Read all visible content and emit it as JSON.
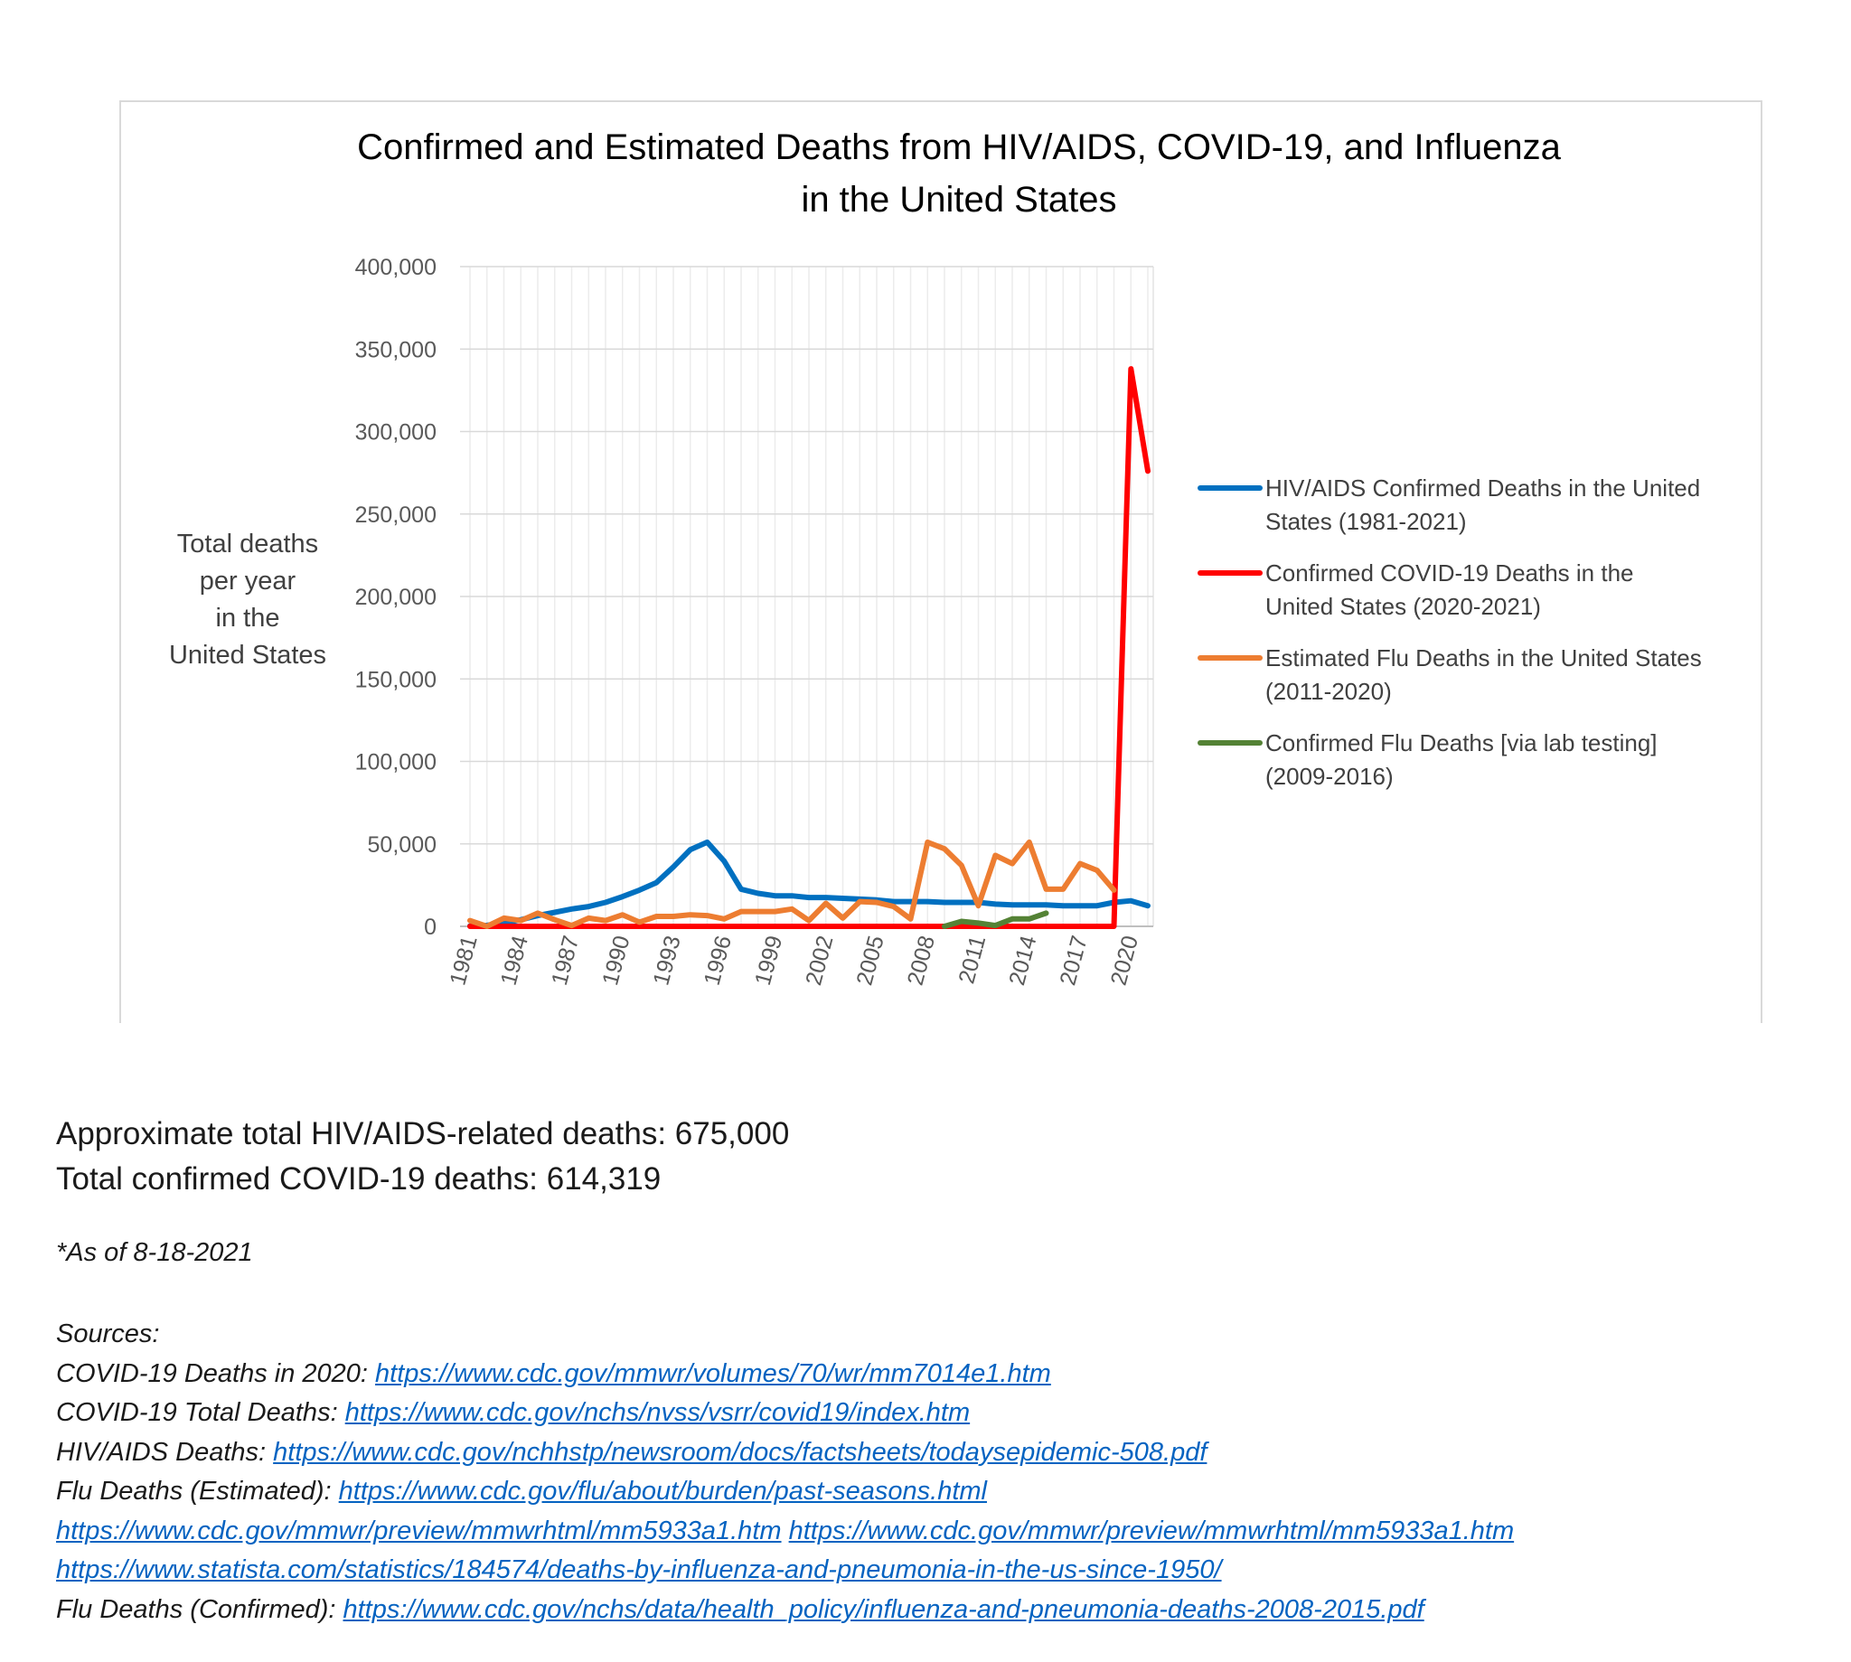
{
  "chart_data": {
    "type": "line",
    "title_lines": [
      "Confirmed and Estimated Deaths from HIV/AIDS, COVID-19, and Influenza",
      "in the United States"
    ],
    "ylabel_lines": [
      "Total deaths",
      "per year",
      "in the",
      "United States"
    ],
    "xlabel": "",
    "ylim": [
      0,
      400000
    ],
    "yticks": [
      0,
      50000,
      100000,
      150000,
      200000,
      250000,
      300000,
      350000,
      400000
    ],
    "ytick_labels": [
      "0",
      "50,000",
      "100,000",
      "150,000",
      "200,000",
      "250,000",
      "300,000",
      "350,000",
      "400,000"
    ],
    "xlim": [
      1981,
      2021
    ],
    "xticks": [
      1981,
      1984,
      1987,
      1990,
      1993,
      1996,
      1999,
      2002,
      2005,
      2008,
      2011,
      2014,
      2017,
      2020
    ],
    "grid": true,
    "legend_position": "right",
    "series": [
      {
        "name": "HIV/AIDS Confirmed Deaths in the United States (1981-2021)",
        "color": "#0070c0",
        "x": [
          1981,
          1982,
          1983,
          1984,
          1985,
          1986,
          1987,
          1988,
          1989,
          1990,
          1991,
          1992,
          1993,
          1994,
          1995,
          1996,
          1997,
          1998,
          1999,
          2000,
          2001,
          2002,
          2003,
          2004,
          2005,
          2006,
          2007,
          2008,
          2009,
          2010,
          2011,
          2012,
          2013,
          2014,
          2015,
          2016,
          2017,
          2018,
          2019,
          2020,
          2021
        ],
        "y": [
          200,
          600,
          2000,
          4000,
          6500,
          8500,
          10500,
          12000,
          14500,
          18000,
          22000,
          26500,
          36000,
          46500,
          51000,
          39500,
          22500,
          20000,
          18500,
          18500,
          17500,
          17500,
          17000,
          16500,
          16000,
          15000,
          15000,
          15000,
          14500,
          14500,
          14500,
          13500,
          13000,
          13000,
          13000,
          12500,
          12500,
          12500,
          14500,
          15500,
          12500
        ]
      },
      {
        "name": "Confirmed COVID-19 Deaths in the United States (2020-2021)",
        "color": "#ff0000",
        "x": [
          1981,
          2019,
          2020,
          2021
        ],
        "y": [
          0,
          0,
          338000,
          276000
        ]
      },
      {
        "name": "Estimated Flu Deaths in the United States (2011-2020)",
        "color": "#ed7d31",
        "x": [
          1981,
          1982,
          1983,
          1984,
          1985,
          1986,
          1987,
          1988,
          1989,
          1990,
          1991,
          1992,
          1993,
          1994,
          1995,
          1996,
          1997,
          1998,
          1999,
          2000,
          2001,
          2002,
          2003,
          2004,
          2005,
          2006,
          2007,
          2008,
          2009,
          2010,
          2011,
          2012,
          2013,
          2014,
          2015,
          2016,
          2017,
          2018,
          2019
        ],
        "y": [
          3500,
          0,
          5000,
          3500,
          8000,
          4000,
          500,
          5000,
          3500,
          7000,
          2500,
          6000,
          6000,
          7000,
          6500,
          4500,
          9000,
          9000,
          9000,
          10500,
          3500,
          14000,
          5000,
          15000,
          14500,
          12000,
          4500,
          51000,
          47000,
          37000,
          12500,
          43000,
          38000,
          51000,
          22500,
          22500,
          38000,
          34000,
          22000
        ]
      },
      {
        "name": "Confirmed Flu Deaths [via lab testing] (2009-2016)",
        "color": "#548235",
        "x": [
          2009,
          2010,
          2011,
          2012,
          2013,
          2014,
          2015
        ],
        "y": [
          0,
          3000,
          2000,
          500,
          4500,
          4500,
          8000
        ]
      }
    ],
    "legend": [
      {
        "lines": [
          "HIV/AIDS Confirmed Deaths in the United",
          "States (1981-2021)"
        ],
        "color": "#0070c0"
      },
      {
        "lines": [
          "Confirmed COVID-19 Deaths in the",
          "United States (2020-2021)"
        ],
        "color": "#ff0000"
      },
      {
        "lines": [
          "Estimated Flu Deaths in the United States",
          "(2011-2020)"
        ],
        "color": "#ed7d31"
      },
      {
        "lines": [
          "Confirmed Flu Deaths [via lab testing]",
          "(2009-2016)"
        ],
        "color": "#548235"
      }
    ]
  },
  "notes": {
    "hiv_total": "Approximate total HIV/AIDS-related deaths: 675,000",
    "covid_total": "Total confirmed COVID-19 deaths: 614,319",
    "as_of": "*As of 8-18-2021",
    "sources_header": "Sources:",
    "sources": [
      {
        "label": "COVID-19 Deaths in 2020: ",
        "links": [
          "https://www.cdc.gov/mmwr/volumes/70/wr/mm7014e1.htm"
        ]
      },
      {
        "label": "COVID-19 Total Deaths: ",
        "links": [
          "https://www.cdc.gov/nchs/nvss/vsrr/covid19/index.htm"
        ]
      },
      {
        "label": "HIV/AIDS Deaths: ",
        "links": [
          "https://www.cdc.gov/nchhstp/newsroom/docs/factsheets/todaysepidemic-508.pdf"
        ]
      },
      {
        "label": "Flu Deaths (Estimated): ",
        "links": [
          "https://www.cdc.gov/flu/about/burden/past-seasons.html"
        ]
      },
      {
        "label": "",
        "links": [
          "https://www.cdc.gov/mmwr/preview/mmwrhtml/mm5933a1.htm",
          "https://www.cdc.gov/mmwr/preview/mmwrhtml/mm5933a1.htm"
        ]
      },
      {
        "label": "",
        "links": [
          "https://www.statista.com/statistics/184574/deaths-by-influenza-and-pneumonia-in-the-us-since-1950/"
        ]
      },
      {
        "label": "Flu Deaths (Confirmed): ",
        "links": [
          "https://www.cdc.gov/nchs/data/health_policy/influenza-and-pneumonia-deaths-2008-2015.pdf"
        ]
      }
    ]
  }
}
